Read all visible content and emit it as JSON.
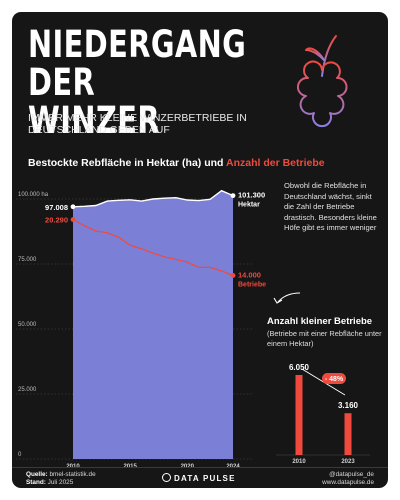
{
  "header": {
    "title_line1": "NIEDERGANG",
    "title_line2": "DER WINZER",
    "subtitle": "IMMER MEHR KLEINE WINZERBETRIEBE IN DEUTSCHLAND GEBEN AUF",
    "chart_heading_part1": "Bestockte Rebfläche in Hektar (ha) und ",
    "chart_heading_part2": "Anzahl der Betriebe"
  },
  "note": "Obwohl die Rebfläche in Deutschland wächst, sinkt die Zahl der Betriebe drastisch. Besonders kleine Höfe gibt es immer weniger",
  "inset": {
    "title": "Anzahl kleiner Betriebe",
    "subtitle": "(Betriebe mit einer Rebfläche unter einem Hektar)"
  },
  "footer": {
    "source_label": "Quelle:",
    "source_value": "bmel-statistik.de",
    "date_label": "Stand:",
    "date_value": "Juli 2025",
    "brand": "DATA PULSE",
    "handle": "@datapulse_de",
    "website": "www.datapulse.de"
  },
  "colors": {
    "background": "#161616",
    "area": "#7b7fd6",
    "accent_red": "#f04a3e",
    "grape_start": "#f04a3e",
    "grape_end": "#8c7fe6"
  },
  "icons": [
    "grape-icon",
    "arrow-icon"
  ],
  "chart_data": [
    {
      "type": "area",
      "title": "Bestockte Rebfläche in Hektar (ha) und Anzahl der Betriebe",
      "ylim": [
        0,
        100000
      ],
      "yticks": [
        0,
        25000,
        50000,
        75000,
        100000
      ],
      "ytick_labels": [
        "0",
        "25.000",
        "50.000",
        "75.000",
        "100.000 ha"
      ],
      "xlim": [
        2010,
        2024
      ],
      "xticks": [
        2010,
        2015,
        2020,
        2024
      ],
      "xtick_labels": [
        "2010",
        "2015",
        "2020",
        "2024"
      ],
      "grid": true,
      "series": [
        {
          "name": "Bestockte Rebfläche (ha)",
          "x": [
            2010,
            2011,
            2012,
            2013,
            2014,
            2015,
            2016,
            2017,
            2018,
            2019,
            2020,
            2021,
            2022,
            2023,
            2024
          ],
          "values": [
            97008,
            97200,
            97500,
            99200,
            99500,
            99700,
            99200,
            100000,
            100300,
            100500,
            99600,
            99400,
            99900,
            103200,
            101300
          ],
          "label_start": "97.008",
          "label_end": "101.300",
          "label_end_unit": "Hektar"
        },
        {
          "name": "Anzahl der Betriebe",
          "x": [
            2010,
            2011,
            2012,
            2013,
            2014,
            2015,
            2016,
            2017,
            2018,
            2019,
            2020,
            2021,
            2022,
            2023,
            2024
          ],
          "values": [
            20290,
            19600,
            19000,
            18800,
            18300,
            17400,
            17000,
            16500,
            16100,
            15800,
            15500,
            14900,
            14900,
            14500,
            14000
          ],
          "label_start": "20.290",
          "label_end": "14.000",
          "label_end_unit": "Betriebe"
        }
      ]
    },
    {
      "type": "bar",
      "title": "Anzahl kleiner Betriebe",
      "subtitle": "(Betriebe mit einer Rebfläche unter einem Hektar)",
      "categories": [
        "2010",
        "2023"
      ],
      "values": [
        6050,
        3160
      ],
      "value_labels": [
        "6.050",
        "3.160"
      ],
      "change_label": "- 48%"
    }
  ]
}
